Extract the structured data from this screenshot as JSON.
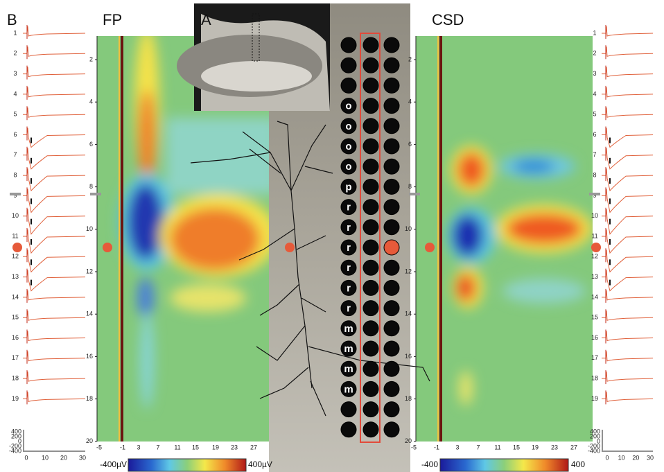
{
  "labels": {
    "b": "B",
    "fp": "FP",
    "a": "A",
    "csd": "CSD"
  },
  "left_traces": {
    "channels": [
      "1",
      "2",
      "3",
      "4",
      "5",
      "6",
      "7",
      "8",
      "9",
      "10",
      "11",
      "12",
      "13",
      "14",
      "15",
      "16",
      "17",
      "18",
      "19"
    ],
    "amp_ticks": [
      "400",
      "200",
      "0",
      "-200",
      "-400"
    ],
    "time_ticks": [
      "0",
      "10",
      "20",
      "30"
    ]
  },
  "right_traces": {
    "channels": [
      "1",
      "2",
      "3",
      "4",
      "5",
      "6",
      "7",
      "8",
      "9",
      "10",
      "11",
      "12",
      "13",
      "14",
      "15",
      "16",
      "17",
      "18",
      "19"
    ],
    "amp_ticks": [
      "400",
      "200",
      "0",
      "-200",
      "-400"
    ],
    "time_ticks": [
      "0",
      "10",
      "20",
      "30"
    ]
  },
  "fp": {
    "depth_ticks": [
      "2",
      "4",
      "6",
      "8",
      "10",
      "12",
      "14",
      "16",
      "18",
      "20"
    ],
    "time_ticks": [
      "-5",
      "-1",
      "3",
      "7",
      "11",
      "15",
      "19",
      "23",
      "27"
    ],
    "colorbar": [
      "-400µV",
      "400µV"
    ]
  },
  "csd": {
    "depth_ticks": [
      "2",
      "4",
      "6",
      "8",
      "10",
      "12",
      "14",
      "16",
      "18",
      "20"
    ],
    "time_ticks": [
      "-5",
      "-1",
      "3",
      "7",
      "11",
      "15",
      "19",
      "23",
      "27"
    ],
    "colorbar": [
      "-400",
      "400"
    ]
  },
  "electrodes": {
    "layer_labels": [
      "o",
      "o",
      "o",
      "o",
      "p",
      "r",
      "r",
      "r",
      "r",
      "r",
      "r",
      "m",
      "m",
      "m",
      "m"
    ]
  }
}
